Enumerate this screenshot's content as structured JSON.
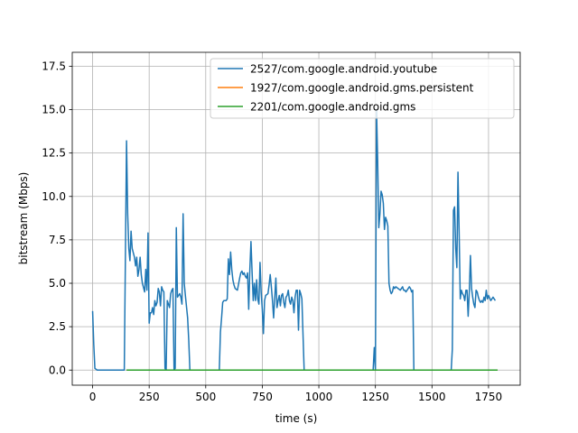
{
  "chart_data": {
    "type": "line",
    "xlabel": "time (s)",
    "ylabel": "bitstream (Mbps)",
    "xlim": [
      -90,
      1890
    ],
    "ylim": [
      -0.87,
      18.3
    ],
    "xticks": [
      0,
      250,
      500,
      750,
      1000,
      1250,
      1500,
      1750
    ],
    "xtick_labels": [
      "0",
      "250",
      "500",
      "750",
      "1000",
      "1250",
      "1500",
      "1750"
    ],
    "yticks": [
      0.0,
      2.5,
      5.0,
      7.5,
      10.0,
      12.5,
      15.0,
      17.5
    ],
    "ytick_labels": [
      "0.0",
      "2.5",
      "5.0",
      "7.5",
      "10.0",
      "12.5",
      "15.0",
      "17.5"
    ],
    "grid": true,
    "legend_position": "top-right",
    "series": [
      {
        "name": "2527/com.google.android.youtube",
        "color": "#1f77b4",
        "points": [
          [
            0,
            3.4
          ],
          [
            5,
            1.5
          ],
          [
            10,
            0.1
          ],
          [
            20,
            0.0
          ],
          [
            140,
            0.0
          ],
          [
            150,
            13.2
          ],
          [
            155,
            9.0
          ],
          [
            160,
            7.0
          ],
          [
            165,
            6.3
          ],
          [
            170,
            8.0
          ],
          [
            175,
            7.0
          ],
          [
            185,
            6.5
          ],
          [
            190,
            6.0
          ],
          [
            195,
            6.5
          ],
          [
            200,
            5.4
          ],
          [
            205,
            5.8
          ],
          [
            210,
            6.5
          ],
          [
            215,
            5.5
          ],
          [
            220,
            5.0
          ],
          [
            230,
            4.5
          ],
          [
            235,
            5.8
          ],
          [
            240,
            4.6
          ],
          [
            245,
            7.9
          ],
          [
            250,
            2.7
          ],
          [
            255,
            3.3
          ],
          [
            260,
            3.3
          ],
          [
            265,
            3.6
          ],
          [
            270,
            3.2
          ],
          [
            275,
            4.0
          ],
          [
            280,
            3.7
          ],
          [
            285,
            3.9
          ],
          [
            290,
            4.7
          ],
          [
            295,
            4.5
          ],
          [
            300,
            3.7
          ],
          [
            305,
            4.8
          ],
          [
            310,
            4.6
          ],
          [
            315,
            4.5
          ],
          [
            320,
            0.1
          ],
          [
            325,
            0.0
          ],
          [
            330,
            4.0
          ],
          [
            340,
            3.6
          ],
          [
            345,
            4.4
          ],
          [
            350,
            4.6
          ],
          [
            355,
            4.7
          ],
          [
            360,
            0.0
          ],
          [
            365,
            0.1
          ],
          [
            370,
            8.2
          ],
          [
            375,
            4.2
          ],
          [
            380,
            4.3
          ],
          [
            385,
            4.4
          ],
          [
            390,
            4.2
          ],
          [
            395,
            3.8
          ],
          [
            400,
            9.0
          ],
          [
            405,
            5.0
          ],
          [
            410,
            4.3
          ],
          [
            420,
            3.0
          ],
          [
            425,
            1.7
          ],
          [
            430,
            0.0
          ],
          [
            560,
            0.0
          ],
          [
            565,
            2.2
          ],
          [
            570,
            3.0
          ],
          [
            575,
            3.9
          ],
          [
            580,
            4.0
          ],
          [
            585,
            4.0
          ],
          [
            590,
            4.0
          ],
          [
            595,
            4.1
          ],
          [
            600,
            6.4
          ],
          [
            605,
            5.5
          ],
          [
            610,
            6.8
          ],
          [
            615,
            5.8
          ],
          [
            620,
            5.2
          ],
          [
            625,
            4.9
          ],
          [
            630,
            4.7
          ],
          [
            640,
            4.6
          ],
          [
            650,
            5.3
          ],
          [
            655,
            5.6
          ],
          [
            660,
            5.7
          ],
          [
            665,
            5.5
          ],
          [
            670,
            5.6
          ],
          [
            675,
            5.4
          ],
          [
            680,
            5.3
          ],
          [
            685,
            5.6
          ],
          [
            690,
            3.5
          ],
          [
            695,
            5.8
          ],
          [
            700,
            7.4
          ],
          [
            705,
            5.6
          ],
          [
            710,
            4.0
          ],
          [
            715,
            5.0
          ],
          [
            720,
            4.0
          ],
          [
            725,
            5.2
          ],
          [
            730,
            4.1
          ],
          [
            735,
            3.8
          ],
          [
            740,
            6.2
          ],
          [
            745,
            4.5
          ],
          [
            750,
            3.5
          ],
          [
            755,
            2.1
          ],
          [
            760,
            4.0
          ],
          [
            765,
            4.3
          ],
          [
            775,
            4.4
          ],
          [
            780,
            4.9
          ],
          [
            785,
            5.5
          ],
          [
            790,
            4.8
          ],
          [
            795,
            4.0
          ],
          [
            800,
            3.0
          ],
          [
            810,
            5.3
          ],
          [
            815,
            3.6
          ],
          [
            820,
            4.0
          ],
          [
            825,
            4.3
          ],
          [
            830,
            3.7
          ],
          [
            835,
            4.3
          ],
          [
            840,
            4.4
          ],
          [
            845,
            3.9
          ],
          [
            850,
            3.6
          ],
          [
            855,
            4.2
          ],
          [
            860,
            4.3
          ],
          [
            865,
            4.6
          ],
          [
            870,
            4.0
          ],
          [
            875,
            3.8
          ],
          [
            880,
            4.2
          ],
          [
            885,
            4.0
          ],
          [
            890,
            3.3
          ],
          [
            895,
            4.2
          ],
          [
            900,
            4.6
          ],
          [
            905,
            4.6
          ],
          [
            910,
            2.3
          ],
          [
            915,
            4.6
          ],
          [
            920,
            4.4
          ],
          [
            925,
            4.1
          ],
          [
            935,
            0.0
          ],
          [
            1240,
            0.0
          ],
          [
            1245,
            1.3
          ],
          [
            1250,
            0.0
          ],
          [
            1255,
            15.0
          ],
          [
            1260,
            12.0
          ],
          [
            1265,
            8.2
          ],
          [
            1270,
            9.0
          ],
          [
            1275,
            10.3
          ],
          [
            1280,
            10.1
          ],
          [
            1285,
            9.6
          ],
          [
            1290,
            8.1
          ],
          [
            1295,
            8.8
          ],
          [
            1300,
            8.6
          ],
          [
            1305,
            8.3
          ],
          [
            1310,
            5.0
          ],
          [
            1315,
            4.6
          ],
          [
            1320,
            4.4
          ],
          [
            1325,
            4.5
          ],
          [
            1330,
            4.8
          ],
          [
            1335,
            4.7
          ],
          [
            1340,
            4.8
          ],
          [
            1350,
            4.7
          ],
          [
            1360,
            4.6
          ],
          [
            1365,
            4.7
          ],
          [
            1370,
            4.8
          ],
          [
            1375,
            4.6
          ],
          [
            1380,
            4.6
          ],
          [
            1385,
            4.5
          ],
          [
            1390,
            4.6
          ],
          [
            1395,
            4.7
          ],
          [
            1400,
            4.8
          ],
          [
            1405,
            4.7
          ],
          [
            1410,
            4.5
          ],
          [
            1415,
            4.6
          ],
          [
            1420,
            0.0
          ],
          [
            1575,
            0.0
          ],
          [
            1585,
            0.0
          ],
          [
            1590,
            1.2
          ],
          [
            1595,
            9.2
          ],
          [
            1600,
            9.4
          ],
          [
            1605,
            7.0
          ],
          [
            1610,
            5.9
          ],
          [
            1615,
            11.4
          ],
          [
            1620,
            8.0
          ],
          [
            1625,
            4.1
          ],
          [
            1630,
            4.6
          ],
          [
            1635,
            4.4
          ],
          [
            1640,
            4.3
          ],
          [
            1645,
            4.0
          ],
          [
            1650,
            4.6
          ],
          [
            1655,
            4.6
          ],
          [
            1660,
            3.1
          ],
          [
            1665,
            4.5
          ],
          [
            1670,
            6.6
          ],
          [
            1675,
            4.7
          ],
          [
            1680,
            4.2
          ],
          [
            1685,
            3.8
          ],
          [
            1690,
            3.6
          ],
          [
            1695,
            4.6
          ],
          [
            1700,
            4.5
          ],
          [
            1705,
            4.2
          ],
          [
            1710,
            4.0
          ],
          [
            1715,
            3.9
          ],
          [
            1720,
            4.0
          ],
          [
            1725,
            3.9
          ],
          [
            1730,
            4.2
          ],
          [
            1735,
            4.0
          ],
          [
            1740,
            4.6
          ],
          [
            1745,
            4.1
          ],
          [
            1750,
            4.3
          ],
          [
            1760,
            4.0
          ],
          [
            1770,
            4.2
          ],
          [
            1780,
            4.0
          ]
        ]
      },
      {
        "name": "1927/com.google.android.gms.persistent",
        "color": "#ff7f0e",
        "points": [
          [
            150,
            0.0
          ],
          [
            1790,
            0.0
          ]
        ]
      },
      {
        "name": "2201/com.google.android.gms",
        "color": "#2ca02c",
        "points": [
          [
            150,
            0.0
          ],
          [
            1790,
            0.0
          ]
        ]
      }
    ]
  }
}
